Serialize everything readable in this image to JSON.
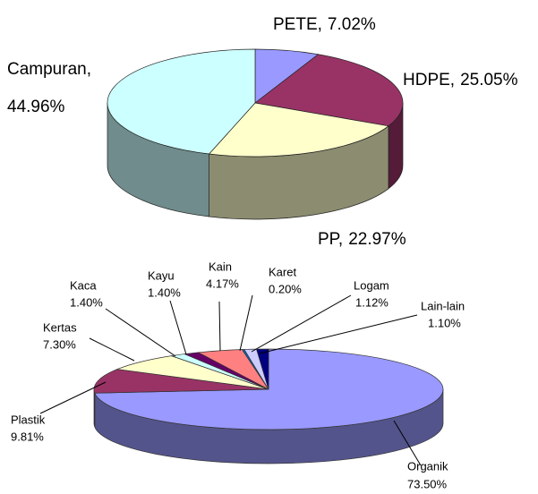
{
  "chart_data": [
    {
      "type": "pie3d",
      "categories": [
        "PETE,",
        "HDPE,",
        "PP,",
        "Campuran,"
      ],
      "values": [
        7.02,
        25.05,
        22.97,
        44.96
      ],
      "value_labels": [
        "7.02%",
        "25.05%",
        "22.97%",
        "44.96%"
      ],
      "colors": [
        "#9999ff",
        "#993366",
        "#ffffcc",
        "#ccffff"
      ]
    },
    {
      "type": "pie3d",
      "categories": [
        "Organik",
        "Plastik",
        "Kertas",
        "Kaca",
        "Kayu",
        "Kain",
        "Karet",
        "Logam",
        "Lain-lain"
      ],
      "values": [
        73.5,
        9.81,
        7.3,
        1.4,
        1.4,
        4.17,
        0.2,
        1.12,
        1.1
      ],
      "value_labels": [
        "73.50%",
        "9.81%",
        "7.30%",
        "1.40%",
        "1.40%",
        "4.17%",
        "0.20%",
        "1.12%",
        "1.10%"
      ],
      "colors": [
        "#9999ff",
        "#993366",
        "#ffffcc",
        "#ccffff",
        "#660066",
        "#ff8080",
        "#0066cc",
        "#ccccff",
        "#000080"
      ]
    }
  ]
}
